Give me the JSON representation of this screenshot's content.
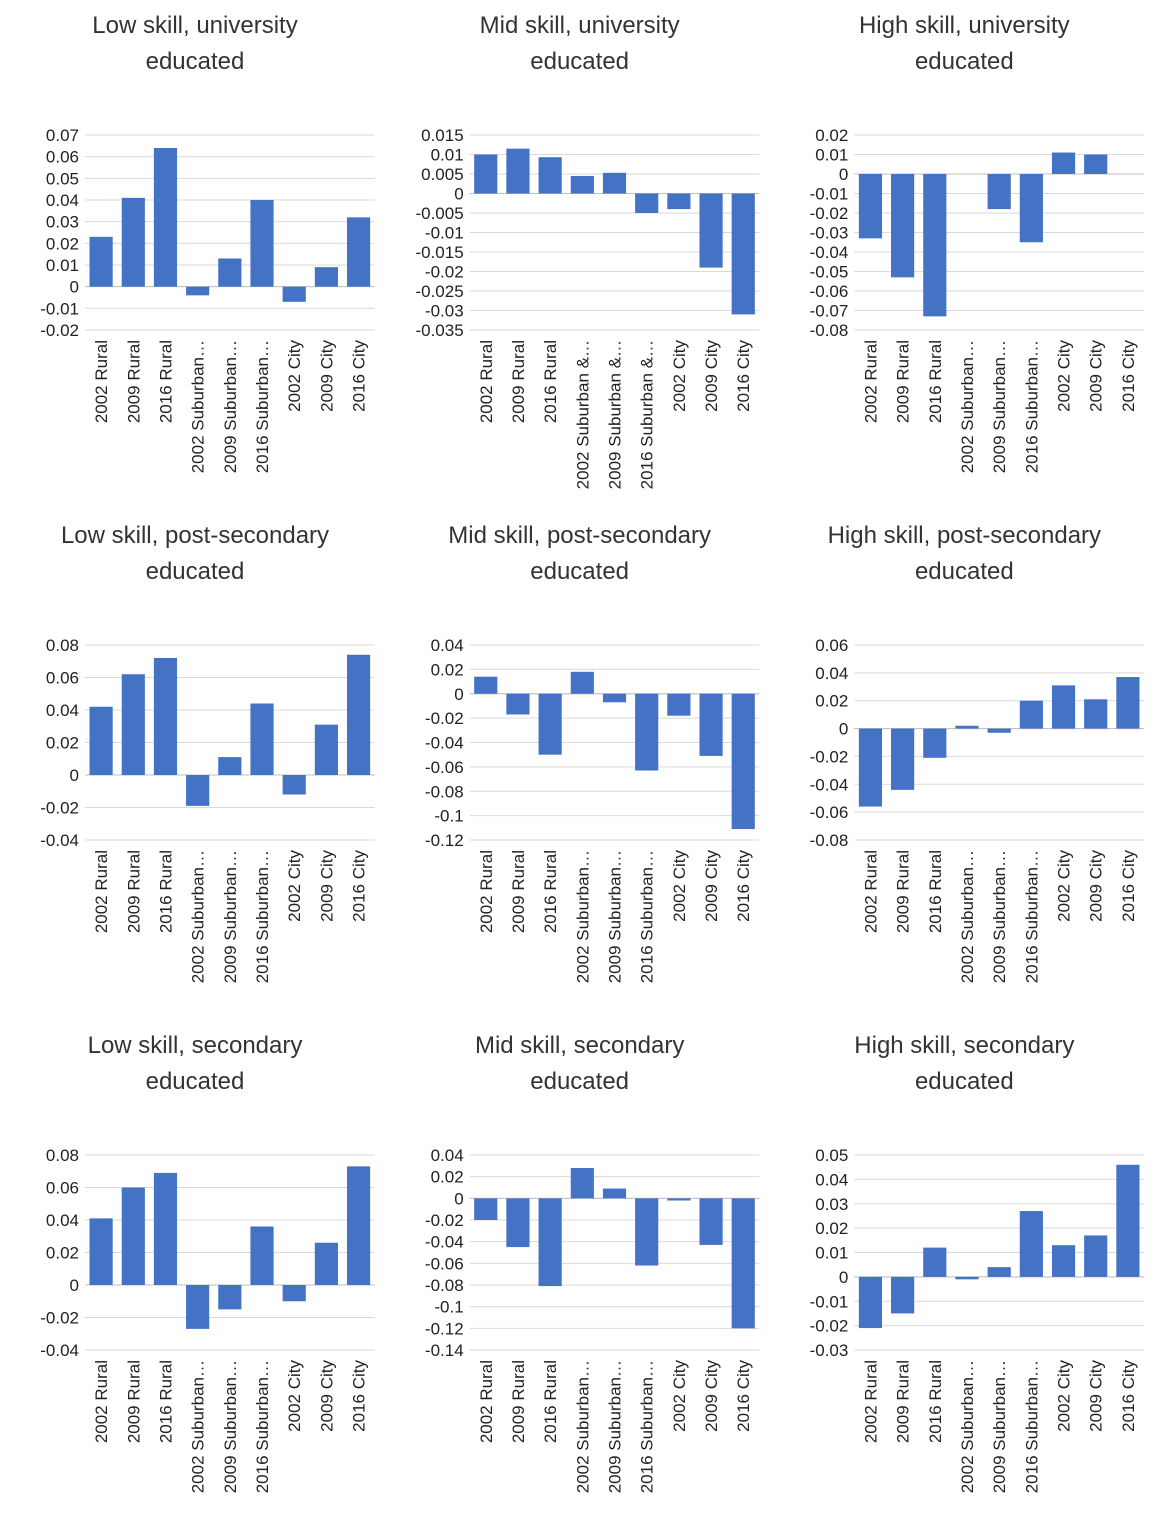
{
  "chart_data": [
    {
      "type": "bar",
      "title": "Low skill, university educated",
      "categories": [
        "2002 Rural",
        "2009 Rural",
        "2016 Rural",
        "2002 Suburban…",
        "2009 Suburban…",
        "2016 Suburban…",
        "2002 City",
        "2009 City",
        "2016 City"
      ],
      "values": [
        0.023,
        0.041,
        0.064,
        -0.004,
        0.013,
        0.04,
        -0.007,
        0.009,
        0.032
      ],
      "color": "#4472c4",
      "ylim": [
        -0.02,
        0.07
      ],
      "yticks": [
        -0.02,
        -0.01,
        0,
        0.01,
        0.02,
        0.03,
        0.04,
        0.05,
        0.06,
        0.07
      ],
      "grid": true
    },
    {
      "type": "bar",
      "title": "Mid skill, university educated",
      "categories": [
        "2002 Rural",
        "2009 Rural",
        "2016 Rural",
        "2002 Suburban &…",
        "2009 Suburban &…",
        "2016 Suburban &…",
        "2002 City",
        "2009 City",
        "2016 City"
      ],
      "values": [
        0.01,
        0.0115,
        0.0093,
        0.0045,
        0.0053,
        -0.005,
        -0.004,
        -0.019,
        -0.031
      ],
      "color": "#4472c4",
      "ylim": [
        -0.035,
        0.015
      ],
      "yticks": [
        -0.035,
        -0.03,
        -0.025,
        -0.02,
        -0.015,
        -0.01,
        -0.005,
        0,
        0.005,
        0.01,
        0.015
      ],
      "grid": true
    },
    {
      "type": "bar",
      "title": "High skill, university educated",
      "categories": [
        "2002 Rural",
        "2009 Rural",
        "2016 Rural",
        "2002 Suburban…",
        "2009 Suburban…",
        "2016 Suburban…",
        "2002 City",
        "2009 City",
        "2016 City"
      ],
      "values": [
        -0.033,
        -0.053,
        -0.073,
        null,
        -0.018,
        -0.035,
        0.011,
        0.01,
        null
      ],
      "color": "#4472c4",
      "ylim": [
        -0.08,
        0.02
      ],
      "yticks": [
        -0.08,
        -0.07,
        -0.06,
        -0.05,
        -0.04,
        -0.03,
        -0.02,
        -0.01,
        0,
        0.01,
        0.02
      ],
      "grid": true
    },
    {
      "type": "bar",
      "title": "Low skill, post-secondary educated",
      "categories": [
        "2002 Rural",
        "2009 Rural",
        "2016 Rural",
        "2002 Suburban…",
        "2009 Suburban…",
        "2016 Suburban…",
        "2002 City",
        "2009 City",
        "2016 City"
      ],
      "values": [
        0.042,
        0.062,
        0.072,
        -0.019,
        0.011,
        0.044,
        -0.012,
        0.031,
        0.074
      ],
      "color": "#4472c4",
      "ylim": [
        -0.04,
        0.08
      ],
      "yticks": [
        -0.04,
        -0.02,
        0,
        0.02,
        0.04,
        0.06,
        0.08
      ],
      "grid": true
    },
    {
      "type": "bar",
      "title": "Mid skill, post-secondary educated",
      "categories": [
        "2002 Rural",
        "2009 Rural",
        "2016 Rural",
        "2002 Suburban…",
        "2009 Suburban…",
        "2016 Suburban…",
        "2002 City",
        "2009 City",
        "2016 City"
      ],
      "values": [
        0.014,
        -0.017,
        -0.05,
        0.018,
        -0.007,
        -0.063,
        -0.018,
        -0.051,
        -0.111
      ],
      "color": "#4472c4",
      "ylim": [
        -0.12,
        0.04
      ],
      "yticks": [
        -0.12,
        -0.1,
        -0.08,
        -0.06,
        -0.04,
        -0.02,
        0,
        0.02,
        0.04
      ],
      "grid": true
    },
    {
      "type": "bar",
      "title": "High skill, post-secondary educated",
      "categories": [
        "2002 Rural",
        "2009 Rural",
        "2016 Rural",
        "2002 Suburban…",
        "2009 Suburban…",
        "2016 Suburban…",
        "2002 City",
        "2009 City",
        "2016 City"
      ],
      "values": [
        -0.056,
        -0.044,
        -0.021,
        0.002,
        -0.003,
        0.02,
        0.031,
        0.021,
        0.037
      ],
      "color": "#4472c4",
      "ylim": [
        -0.08,
        0.06
      ],
      "yticks": [
        -0.08,
        -0.06,
        -0.04,
        -0.02,
        0,
        0.02,
        0.04,
        0.06
      ],
      "grid": true
    },
    {
      "type": "bar",
      "title": "Low skill, secondary educated",
      "categories": [
        "2002 Rural",
        "2009 Rural",
        "2016 Rural",
        "2002 Suburban…",
        "2009 Suburban…",
        "2016 Suburban…",
        "2002 City",
        "2009 City",
        "2016 City"
      ],
      "values": [
        0.041,
        0.06,
        0.069,
        -0.027,
        -0.015,
        0.036,
        -0.01,
        0.026,
        0.073
      ],
      "color": "#4472c4",
      "ylim": [
        -0.04,
        0.08
      ],
      "yticks": [
        -0.04,
        -0.02,
        0,
        0.02,
        0.04,
        0.06,
        0.08
      ],
      "grid": true
    },
    {
      "type": "bar",
      "title": "Mid skill, secondary educated",
      "categories": [
        "2002 Rural",
        "2009 Rural",
        "2016 Rural",
        "2002 Suburban…",
        "2009 Suburban…",
        "2016 Suburban…",
        "2002 City",
        "2009 City",
        "2016 City"
      ],
      "values": [
        -0.02,
        -0.045,
        -0.081,
        0.028,
        0.009,
        -0.062,
        -0.002,
        -0.043,
        -0.12
      ],
      "color": "#4472c4",
      "ylim": [
        -0.14,
        0.04
      ],
      "yticks": [
        -0.14,
        -0.12,
        -0.1,
        -0.08,
        -0.06,
        -0.04,
        -0.02,
        0,
        0.02,
        0.04
      ],
      "grid": true
    },
    {
      "type": "bar",
      "title": "High skill, secondary educated",
      "categories": [
        "2002 Rural",
        "2009 Rural",
        "2016 Rural",
        "2002 Suburban…",
        "2009 Suburban…",
        "2016 Suburban…",
        "2002 City",
        "2009 City",
        "2016 City"
      ],
      "values": [
        -0.021,
        -0.015,
        0.012,
        -0.001,
        0.004,
        0.027,
        0.013,
        0.017,
        0.046
      ],
      "color": "#4472c4",
      "ylim": [
        -0.03,
        0.05
      ],
      "yticks": [
        -0.03,
        -0.02,
        -0.01,
        0,
        0.01,
        0.02,
        0.03,
        0.04,
        0.05
      ],
      "grid": true
    }
  ]
}
